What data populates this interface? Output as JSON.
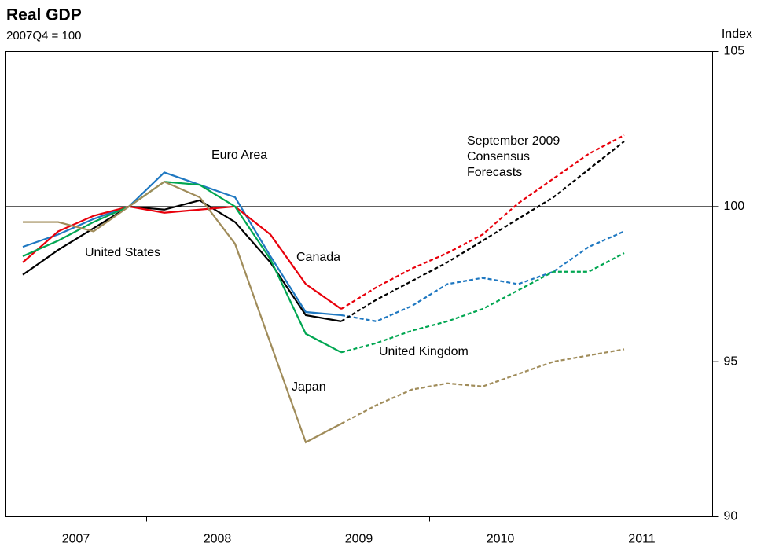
{
  "chart_data": {
    "type": "line",
    "title": "Real GDP",
    "subtitle": "2007Q4 = 100",
    "y_axis_label": "Index",
    "x": [
      2007.125,
      2007.375,
      2007.625,
      2007.875,
      2008.125,
      2008.375,
      2008.625,
      2008.875,
      2009.125,
      2009.375,
      2009.625,
      2009.875,
      2010.125,
      2010.375,
      2010.625,
      2010.875,
      2011.125,
      2011.375
    ],
    "xlim": [
      2007,
      2012
    ],
    "xticks": [
      {
        "value": 2007.5,
        "label": "2007"
      },
      {
        "value": 2008.5,
        "label": "2008"
      },
      {
        "value": 2009.5,
        "label": "2009"
      },
      {
        "value": 2010.5,
        "label": "2010"
      },
      {
        "value": 2011.5,
        "label": "2011"
      }
    ],
    "x_tick_marks": [
      2008,
      2009,
      2010,
      2011
    ],
    "ylim": [
      90,
      105
    ],
    "yticks": [
      90,
      95,
      100,
      105
    ],
    "reference_line": 100,
    "annotation": [
      "September 2009",
      "Consensus",
      "Forecasts"
    ],
    "series": [
      {
        "name": "Euro Area",
        "color": "#1f78c1",
        "values": [
          98.7,
          99.1,
          99.6,
          100,
          101.1,
          100.7,
          100.3,
          98.4,
          96.6,
          96.5,
          null,
          null,
          null,
          null,
          null,
          null,
          null,
          null
        ],
        "forecast": [
          null,
          null,
          null,
          null,
          null,
          null,
          null,
          null,
          null,
          96.5,
          96.3,
          96.8,
          97.5,
          97.7,
          97.5,
          97.9,
          98.7,
          99.2
        ]
      },
      {
        "name": "United States",
        "color": "#000000",
        "values": [
          97.8,
          98.6,
          99.3,
          100,
          99.9,
          100.2,
          99.5,
          98.2,
          96.5,
          96.3,
          null,
          null,
          null,
          null,
          null,
          null,
          null,
          null
        ],
        "forecast": [
          null,
          null,
          null,
          null,
          null,
          null,
          null,
          null,
          null,
          96.3,
          97.0,
          97.6,
          98.2,
          98.9,
          99.6,
          100.3,
          101.2,
          102.1
        ]
      },
      {
        "name": "Canada",
        "color": "#e8000b",
        "values": [
          98.2,
          99.2,
          99.7,
          100,
          99.8,
          99.9,
          100,
          99.1,
          97.5,
          96.7,
          null,
          null,
          null,
          null,
          null,
          null,
          null,
          null
        ],
        "forecast": [
          null,
          null,
          null,
          null,
          null,
          null,
          null,
          null,
          null,
          96.7,
          97.4,
          98.0,
          98.5,
          99.1,
          100.1,
          100.9,
          101.7,
          102.3
        ]
      },
      {
        "name": "United Kingdom",
        "color": "#00a651",
        "values": [
          98.4,
          98.9,
          99.5,
          100,
          100.8,
          100.7,
          100,
          98.3,
          95.9,
          95.3,
          null,
          null,
          null,
          null,
          null,
          null,
          null,
          null
        ],
        "forecast": [
          null,
          null,
          null,
          null,
          null,
          null,
          null,
          null,
          null,
          95.3,
          95.6,
          96.0,
          96.3,
          96.7,
          97.3,
          97.9,
          97.9,
          98.5
        ]
      },
      {
        "name": "Japan",
        "color": "#a08c5a",
        "values": [
          99.5,
          99.5,
          99.2,
          100,
          100.8,
          100.3,
          98.8,
          95.6,
          92.4,
          93.0,
          null,
          null,
          null,
          null,
          null,
          null,
          null,
          null
        ],
        "forecast": [
          null,
          null,
          null,
          null,
          null,
          null,
          null,
          null,
          null,
          93.0,
          93.6,
          94.1,
          94.3,
          94.2,
          94.6,
          95.0,
          95.2,
          95.4
        ]
      }
    ]
  }
}
